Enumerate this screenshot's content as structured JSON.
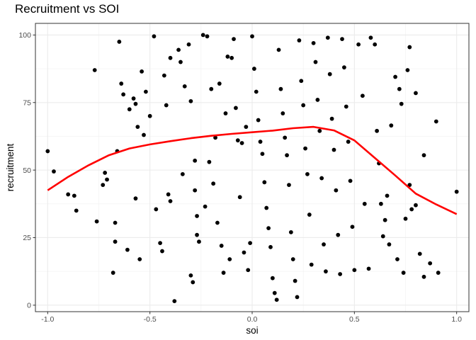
{
  "chart_data": {
    "type": "scatter",
    "title": "Recruitment vs SOI",
    "xlabel": "soi",
    "ylabel": "recruitment",
    "xlim": [
      -1.06,
      1.06
    ],
    "ylim": [
      -2.4,
      104.3
    ],
    "x_ticks": [
      -1.0,
      -0.5,
      0.0,
      0.5,
      1.0
    ],
    "x_tick_labels": [
      "-1.0",
      "-0.5",
      "0.0",
      "0.5",
      "1.0"
    ],
    "y_ticks": [
      0,
      25,
      50,
      75,
      100
    ],
    "y_tick_labels": [
      "0",
      "25",
      "50",
      "75",
      "100"
    ],
    "grid": true,
    "point_color": "#000000",
    "smooth_color": "#ff0000",
    "points": [
      [
        -1.0,
        57
      ],
      [
        -0.97,
        49.5
      ],
      [
        -0.9,
        41
      ],
      [
        -0.87,
        40.5
      ],
      [
        -0.86,
        35
      ],
      [
        -0.77,
        87
      ],
      [
        -0.76,
        31
      ],
      [
        -0.73,
        44.5
      ],
      [
        -0.72,
        49
      ],
      [
        -0.71,
        46.5
      ],
      [
        -0.68,
        12
      ],
      [
        -0.67,
        23.5
      ],
      [
        -0.67,
        30.5
      ],
      [
        -0.66,
        57
      ],
      [
        -0.65,
        97.5
      ],
      [
        -0.64,
        82
      ],
      [
        -0.63,
        78
      ],
      [
        -0.61,
        20.5
      ],
      [
        -0.6,
        72.5
      ],
      [
        -0.58,
        76.5
      ],
      [
        -0.57,
        74.5
      ],
      [
        -0.57,
        39.5
      ],
      [
        -0.56,
        66
      ],
      [
        -0.55,
        17
      ],
      [
        -0.54,
        86.5
      ],
      [
        -0.53,
        63
      ],
      [
        -0.52,
        79
      ],
      [
        -0.5,
        70
      ],
      [
        -0.48,
        99.5
      ],
      [
        -0.47,
        35.5
      ],
      [
        -0.45,
        23
      ],
      [
        -0.44,
        20
      ],
      [
        -0.43,
        85
      ],
      [
        -0.42,
        74
      ],
      [
        -0.41,
        41
      ],
      [
        -0.4,
        91.5
      ],
      [
        -0.4,
        38.5
      ],
      [
        -0.38,
        1.5
      ],
      [
        -0.36,
        94.5
      ],
      [
        -0.35,
        90
      ],
      [
        -0.34,
        48.5
      ],
      [
        -0.33,
        81
      ],
      [
        -0.31,
        96.5
      ],
      [
        -0.3,
        75.5
      ],
      [
        -0.3,
        11
      ],
      [
        -0.29,
        8.5
      ],
      [
        -0.28,
        53.5
      ],
      [
        -0.28,
        42.5
      ],
      [
        -0.27,
        33
      ],
      [
        -0.27,
        26
      ],
      [
        -0.26,
        23.5
      ],
      [
        -0.24,
        100
      ],
      [
        -0.23,
        36.5
      ],
      [
        -0.22,
        99.5
      ],
      [
        -0.21,
        53
      ],
      [
        -0.2,
        80
      ],
      [
        -0.19,
        45
      ],
      [
        -0.18,
        62
      ],
      [
        -0.17,
        30.5
      ],
      [
        -0.16,
        82
      ],
      [
        -0.15,
        22
      ],
      [
        -0.14,
        12
      ],
      [
        -0.13,
        71
      ],
      [
        -0.12,
        92
      ],
      [
        -0.11,
        17
      ],
      [
        -0.1,
        91.5
      ],
      [
        -0.09,
        98.5
      ],
      [
        -0.08,
        73
      ],
      [
        -0.07,
        61
      ],
      [
        -0.06,
        40
      ],
      [
        -0.05,
        60
      ],
      [
        -0.04,
        19.5
      ],
      [
        -0.03,
        66
      ],
      [
        -0.02,
        13
      ],
      [
        -0.01,
        23
      ],
      [
        0.0,
        99.5
      ],
      [
        0.01,
        87.5
      ],
      [
        0.02,
        79
      ],
      [
        0.03,
        68.5
      ],
      [
        0.04,
        60.5
      ],
      [
        0.05,
        56
      ],
      [
        0.06,
        45.5
      ],
      [
        0.07,
        36
      ],
      [
        0.08,
        28.5
      ],
      [
        0.09,
        21.5
      ],
      [
        0.1,
        10
      ],
      [
        0.11,
        4.5
      ],
      [
        0.12,
        2
      ],
      [
        0.13,
        94.5
      ],
      [
        0.14,
        80
      ],
      [
        0.15,
        71
      ],
      [
        0.16,
        62
      ],
      [
        0.17,
        55.5
      ],
      [
        0.18,
        44.5
      ],
      [
        0.19,
        27
      ],
      [
        0.2,
        17
      ],
      [
        0.21,
        9
      ],
      [
        0.22,
        3
      ],
      [
        0.23,
        98
      ],
      [
        0.24,
        83
      ],
      [
        0.25,
        74
      ],
      [
        0.26,
        58
      ],
      [
        0.27,
        48.5
      ],
      [
        0.28,
        33.5
      ],
      [
        0.29,
        15
      ],
      [
        0.3,
        97
      ],
      [
        0.31,
        90
      ],
      [
        0.32,
        76
      ],
      [
        0.33,
        64.5
      ],
      [
        0.34,
        47
      ],
      [
        0.35,
        22.5
      ],
      [
        0.36,
        12.5
      ],
      [
        0.37,
        99
      ],
      [
        0.38,
        85.5
      ],
      [
        0.39,
        69
      ],
      [
        0.4,
        57.5
      ],
      [
        0.41,
        42.5
      ],
      [
        0.42,
        26
      ],
      [
        0.43,
        11.5
      ],
      [
        0.44,
        98.5
      ],
      [
        0.45,
        88
      ],
      [
        0.46,
        73.5
      ],
      [
        0.47,
        60.5
      ],
      [
        0.48,
        46
      ],
      [
        0.49,
        29
      ],
      [
        0.5,
        13
      ],
      [
        0.52,
        96.5
      ],
      [
        0.54,
        77.5
      ],
      [
        0.55,
        37.5
      ],
      [
        0.57,
        13.5
      ],
      [
        0.58,
        99
      ],
      [
        0.6,
        96.5
      ],
      [
        0.61,
        64.5
      ],
      [
        0.62,
        52.5
      ],
      [
        0.63,
        37.5
      ],
      [
        0.64,
        25.5
      ],
      [
        0.65,
        31.5
      ],
      [
        0.66,
        40.5
      ],
      [
        0.67,
        22.5
      ],
      [
        0.68,
        66.5
      ],
      [
        0.7,
        84.5
      ],
      [
        0.71,
        17
      ],
      [
        0.72,
        80
      ],
      [
        0.73,
        74.5
      ],
      [
        0.74,
        12
      ],
      [
        0.75,
        32
      ],
      [
        0.76,
        87
      ],
      [
        0.77,
        44.5
      ],
      [
        0.77,
        95.5
      ],
      [
        0.78,
        35.5
      ],
      [
        0.8,
        78.5
      ],
      [
        0.8,
        37
      ],
      [
        0.82,
        19
      ],
      [
        0.84,
        55.5
      ],
      [
        0.84,
        10.5
      ],
      [
        0.87,
        15.5
      ],
      [
        0.9,
        68
      ],
      [
        0.91,
        12
      ],
      [
        1.0,
        42
      ]
    ],
    "smooth_line": [
      [
        -1.0,
        42.5
      ],
      [
        -0.9,
        47.5
      ],
      [
        -0.8,
        51.8
      ],
      [
        -0.7,
        55.5
      ],
      [
        -0.6,
        58.0
      ],
      [
        -0.5,
        59.5
      ],
      [
        -0.4,
        60.7
      ],
      [
        -0.3,
        61.8
      ],
      [
        -0.2,
        62.7
      ],
      [
        -0.1,
        63.4
      ],
      [
        0.0,
        64.0
      ],
      [
        0.1,
        64.6
      ],
      [
        0.2,
        65.5
      ],
      [
        0.3,
        66.0
      ],
      [
        0.4,
        64.7
      ],
      [
        0.5,
        61.0
      ],
      [
        0.6,
        54.5
      ],
      [
        0.7,
        48.0
      ],
      [
        0.8,
        41.3
      ],
      [
        0.9,
        37.3
      ],
      [
        1.0,
        33.7
      ]
    ]
  }
}
